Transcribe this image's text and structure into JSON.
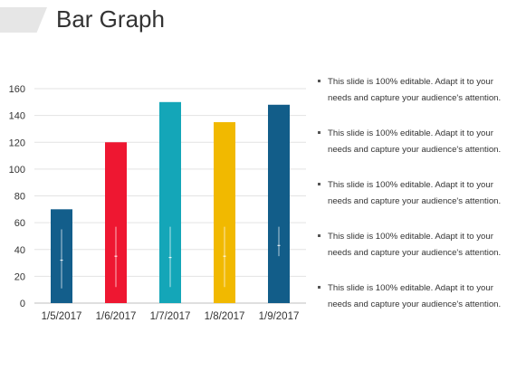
{
  "title": "Bar Graph",
  "bullets": [
    "This slide is 100% editable. Adapt it to your needs and capture your audience's attention.",
    "This slide is 100% editable. Adapt it to your needs and capture your audience's attention.",
    "This slide is 100% editable. Adapt it to your needs and capture your audience's attention.",
    "This slide is 100% editable. Adapt it to your needs and capture your audience's attention.",
    "This slide is 100% editable. Adapt it to your needs and capture your audience's attention."
  ],
  "chart_data": {
    "type": "bar",
    "categories": [
      "1/5/2017",
      "1/6/2017",
      "1/7/2017",
      "1/8/2017",
      "1/9/2017"
    ],
    "values": [
      70,
      120,
      150,
      135,
      148
    ],
    "error_bars": [
      {
        "center": 32,
        "low": 11,
        "high": 55
      },
      {
        "center": 35,
        "low": 12,
        "high": 57
      },
      {
        "center": 34,
        "low": 12,
        "high": 57
      },
      {
        "center": 35,
        "low": 12,
        "high": 57
      },
      {
        "center": 43,
        "low": 35,
        "high": 57
      }
    ],
    "colors": [
      "#135e8b",
      "#ee1731",
      "#14a6b8",
      "#f1b900",
      "#125d89"
    ],
    "ylim": [
      0,
      160
    ],
    "yticks": [
      0,
      20,
      40,
      60,
      80,
      100,
      120,
      140,
      160
    ],
    "grid": true,
    "title": "",
    "xlabel": "",
    "ylabel": ""
  }
}
